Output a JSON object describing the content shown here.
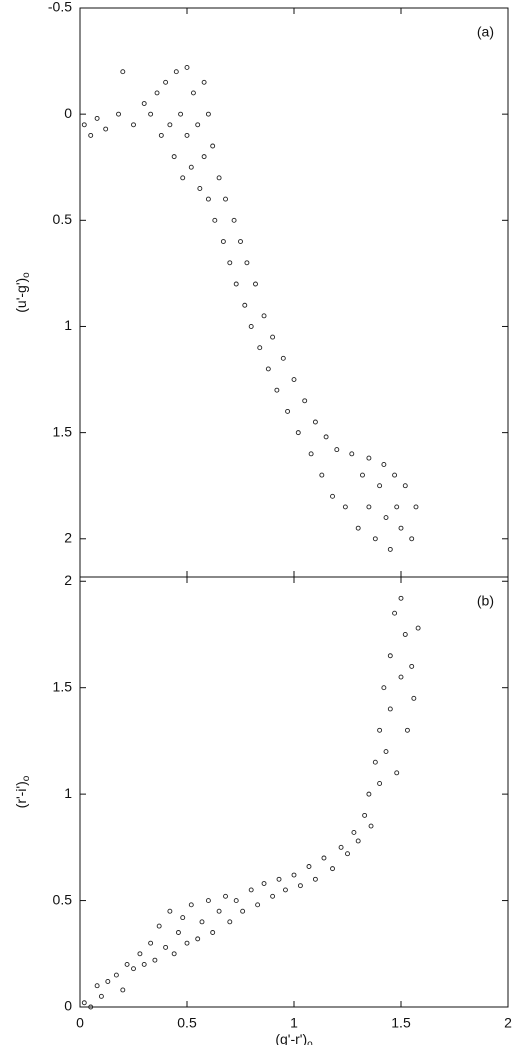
{
  "chart_data": [
    {
      "type": "scatter",
      "annotation": "(a)",
      "ylabel": {
        "text": "(u'-g')",
        "sub": "o"
      },
      "marker": {
        "color": "#222222",
        "fill": "none"
      },
      "xlim": [
        0,
        2
      ],
      "xticks": [
        0,
        0.5,
        1,
        1.5,
        2
      ],
      "show_xtick_labels": false,
      "ylim": [
        2.18,
        -0.5
      ],
      "yticks": [
        -0.5,
        0,
        0.5,
        1,
        1.5,
        2
      ],
      "x": [
        0.02,
        0.05,
        0.08,
        0.12,
        0.18,
        0.2,
        0.25,
        0.3,
        0.33,
        0.36,
        0.38,
        0.4,
        0.42,
        0.44,
        0.45,
        0.47,
        0.48,
        0.5,
        0.5,
        0.52,
        0.53,
        0.55,
        0.56,
        0.58,
        0.58,
        0.6,
        0.6,
        0.62,
        0.63,
        0.65,
        0.67,
        0.68,
        0.7,
        0.72,
        0.73,
        0.75,
        0.77,
        0.78,
        0.8,
        0.82,
        0.84,
        0.86,
        0.88,
        0.9,
        0.92,
        0.95,
        0.97,
        1.0,
        1.02,
        1.05,
        1.08,
        1.1,
        1.13,
        1.15,
        1.18,
        1.2,
        1.24,
        1.27,
        1.3,
        1.32,
        1.35,
        1.35,
        1.38,
        1.4,
        1.42,
        1.43,
        1.45,
        1.47,
        1.48,
        1.5,
        1.52,
        1.55,
        1.57
      ],
      "y": [
        0.05,
        0.1,
        0.02,
        0.07,
        0.0,
        -0.2,
        0.05,
        -0.05,
        0.0,
        -0.1,
        0.1,
        -0.15,
        0.05,
        0.2,
        -0.2,
        0.0,
        0.3,
        -0.22,
        0.1,
        0.25,
        -0.1,
        0.05,
        0.35,
        -0.15,
        0.2,
        0.4,
        0.0,
        0.15,
        0.5,
        0.3,
        0.6,
        0.4,
        0.7,
        0.5,
        0.8,
        0.6,
        0.9,
        0.7,
        1.0,
        0.8,
        1.1,
        0.95,
        1.2,
        1.05,
        1.3,
        1.15,
        1.4,
        1.25,
        1.5,
        1.35,
        1.6,
        1.45,
        1.7,
        1.52,
        1.8,
        1.58,
        1.85,
        1.6,
        1.95,
        1.7,
        1.62,
        1.85,
        2.0,
        1.75,
        1.65,
        1.9,
        2.05,
        1.7,
        1.85,
        1.95,
        1.75,
        2.0,
        1.85
      ]
    },
    {
      "type": "scatter",
      "annotation": "(b)",
      "ylabel": {
        "text": "(r'-i')",
        "sub": "o"
      },
      "xlabel": {
        "text": "(g'-r')",
        "sub": "o"
      },
      "marker": {
        "color": "#222222",
        "fill": "none"
      },
      "xlim": [
        0,
        2
      ],
      "xticks": [
        0,
        0.5,
        1,
        1.5,
        2
      ],
      "show_xtick_labels": true,
      "ylim": [
        0,
        2.02
      ],
      "yticks": [
        0,
        0.5,
        1,
        1.5,
        2
      ],
      "x": [
        0.02,
        0.05,
        0.08,
        0.1,
        0.13,
        0.17,
        0.2,
        0.22,
        0.25,
        0.28,
        0.3,
        0.33,
        0.35,
        0.37,
        0.4,
        0.42,
        0.44,
        0.46,
        0.48,
        0.5,
        0.52,
        0.55,
        0.57,
        0.6,
        0.62,
        0.65,
        0.68,
        0.7,
        0.73,
        0.76,
        0.8,
        0.83,
        0.86,
        0.9,
        0.93,
        0.96,
        1.0,
        1.03,
        1.07,
        1.1,
        1.14,
        1.18,
        1.22,
        1.25,
        1.28,
        1.3,
        1.33,
        1.35,
        1.36,
        1.38,
        1.4,
        1.4,
        1.42,
        1.43,
        1.45,
        1.45,
        1.47,
        1.48,
        1.5,
        1.52,
        1.53,
        1.55,
        1.56,
        1.58,
        1.5
      ],
      "y": [
        0.02,
        0.0,
        0.1,
        0.05,
        0.12,
        0.15,
        0.08,
        0.2,
        0.18,
        0.25,
        0.2,
        0.3,
        0.22,
        0.38,
        0.28,
        0.45,
        0.25,
        0.35,
        0.42,
        0.3,
        0.48,
        0.32,
        0.4,
        0.5,
        0.35,
        0.45,
        0.52,
        0.4,
        0.5,
        0.45,
        0.55,
        0.48,
        0.58,
        0.52,
        0.6,
        0.55,
        0.62,
        0.57,
        0.66,
        0.6,
        0.7,
        0.65,
        0.75,
        0.72,
        0.82,
        0.78,
        0.9,
        1.0,
        0.85,
        1.15,
        1.3,
        1.05,
        1.5,
        1.2,
        1.65,
        1.4,
        1.85,
        1.1,
        1.55,
        1.75,
        1.3,
        1.6,
        1.45,
        1.78,
        1.92
      ]
    }
  ]
}
